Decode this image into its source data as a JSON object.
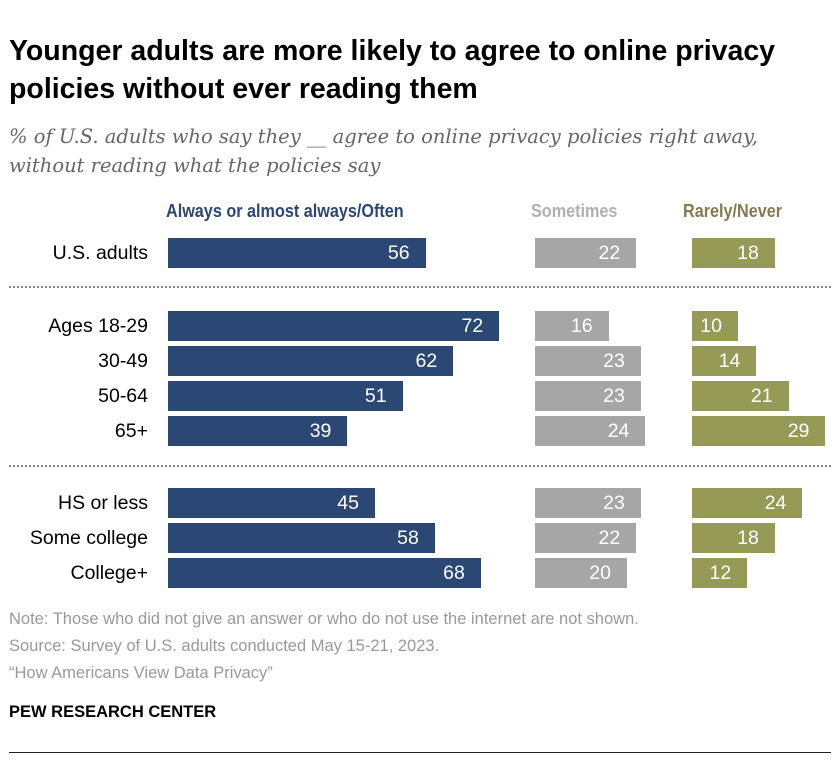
{
  "title": "Younger adults are more likely to agree to online privacy policies without ever reading them",
  "subtitle": "% of U.S. adults who say they __ agree to online privacy policies right away, without reading what the policies say",
  "chart_data": {
    "type": "bar",
    "orientation": "horizontal",
    "stacked": false,
    "categories": [
      "U.S. adults",
      "Ages 18-29",
      "30-49",
      "50-64",
      "65+",
      "HS or less",
      "Some college",
      "College+"
    ],
    "groups": [
      [
        "U.S. adults"
      ],
      [
        "Ages 18-29",
        "30-49",
        "50-64",
        "65+"
      ],
      [
        "HS or less",
        "Some college",
        "College+"
      ]
    ],
    "series": [
      {
        "name": "Always or almost always/Often",
        "color": "#2b4875",
        "header_color": "#2b4875",
        "values": [
          56,
          72,
          62,
          51,
          39,
          45,
          58,
          68
        ]
      },
      {
        "name": "Sometimes",
        "color": "#a6a6a6",
        "header_color": "#b0b0b0",
        "values": [
          22,
          16,
          23,
          23,
          24,
          23,
          22,
          20
        ]
      },
      {
        "name": "Rarely/Never",
        "color": "#959b56",
        "header_color": "#857a4e",
        "values": [
          18,
          10,
          14,
          21,
          29,
          24,
          18,
          12
        ]
      }
    ],
    "data_labels": true,
    "grid": false,
    "legend": "top (column headers)"
  },
  "footer": {
    "note": "Note: Those who did not give an answer or who do not use the internet are not shown.",
    "source": "Source: Survey of U.S. adults conducted May 15-21, 2023.",
    "report": "“How Americans View Data Privacy”",
    "brand": "PEW RESEARCH CENTER"
  }
}
